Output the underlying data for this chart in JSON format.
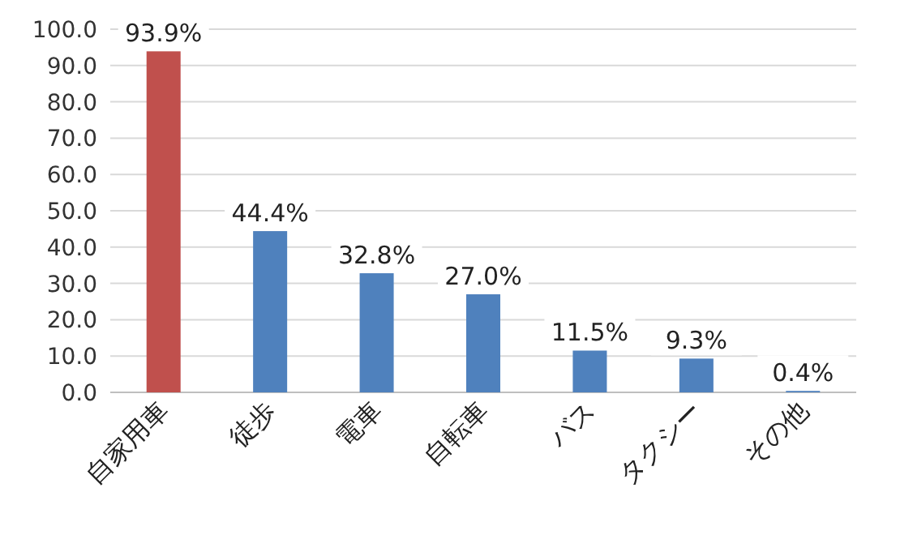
{
  "chart_data": {
    "type": "bar",
    "categories": [
      "自家用車",
      "徒歩",
      "電車",
      "自転車",
      "バス",
      "タクシー",
      "その他"
    ],
    "values": [
      93.9,
      44.4,
      32.8,
      27.0,
      11.5,
      9.3,
      0.4
    ],
    "colors": [
      "#c0504d",
      "#4f81bd",
      "#4f81bd",
      "#4f81bd",
      "#4f81bd",
      "#4f81bd",
      "#4f81bd"
    ],
    "value_labels": [
      "93.9%",
      "44.4%",
      "32.8%",
      "27.0%",
      "11.5%",
      "9.3%",
      "0.4%"
    ],
    "ylim": [
      0,
      100
    ],
    "yticks": [
      {
        "value": 0,
        "label": "0.0"
      },
      {
        "value": 10,
        "label": "10.0"
      },
      {
        "value": 20,
        "label": "20.0"
      },
      {
        "value": 30,
        "label": "30.0"
      },
      {
        "value": 40,
        "label": "40.0"
      },
      {
        "value": 50,
        "label": "50.0"
      },
      {
        "value": 60,
        "label": "60.0"
      },
      {
        "value": 70,
        "label": "70.0"
      },
      {
        "value": 80,
        "label": "80.0"
      },
      {
        "value": 90,
        "label": "90.0"
      },
      {
        "value": 100,
        "label": "100.0"
      }
    ],
    "grid": "y"
  }
}
